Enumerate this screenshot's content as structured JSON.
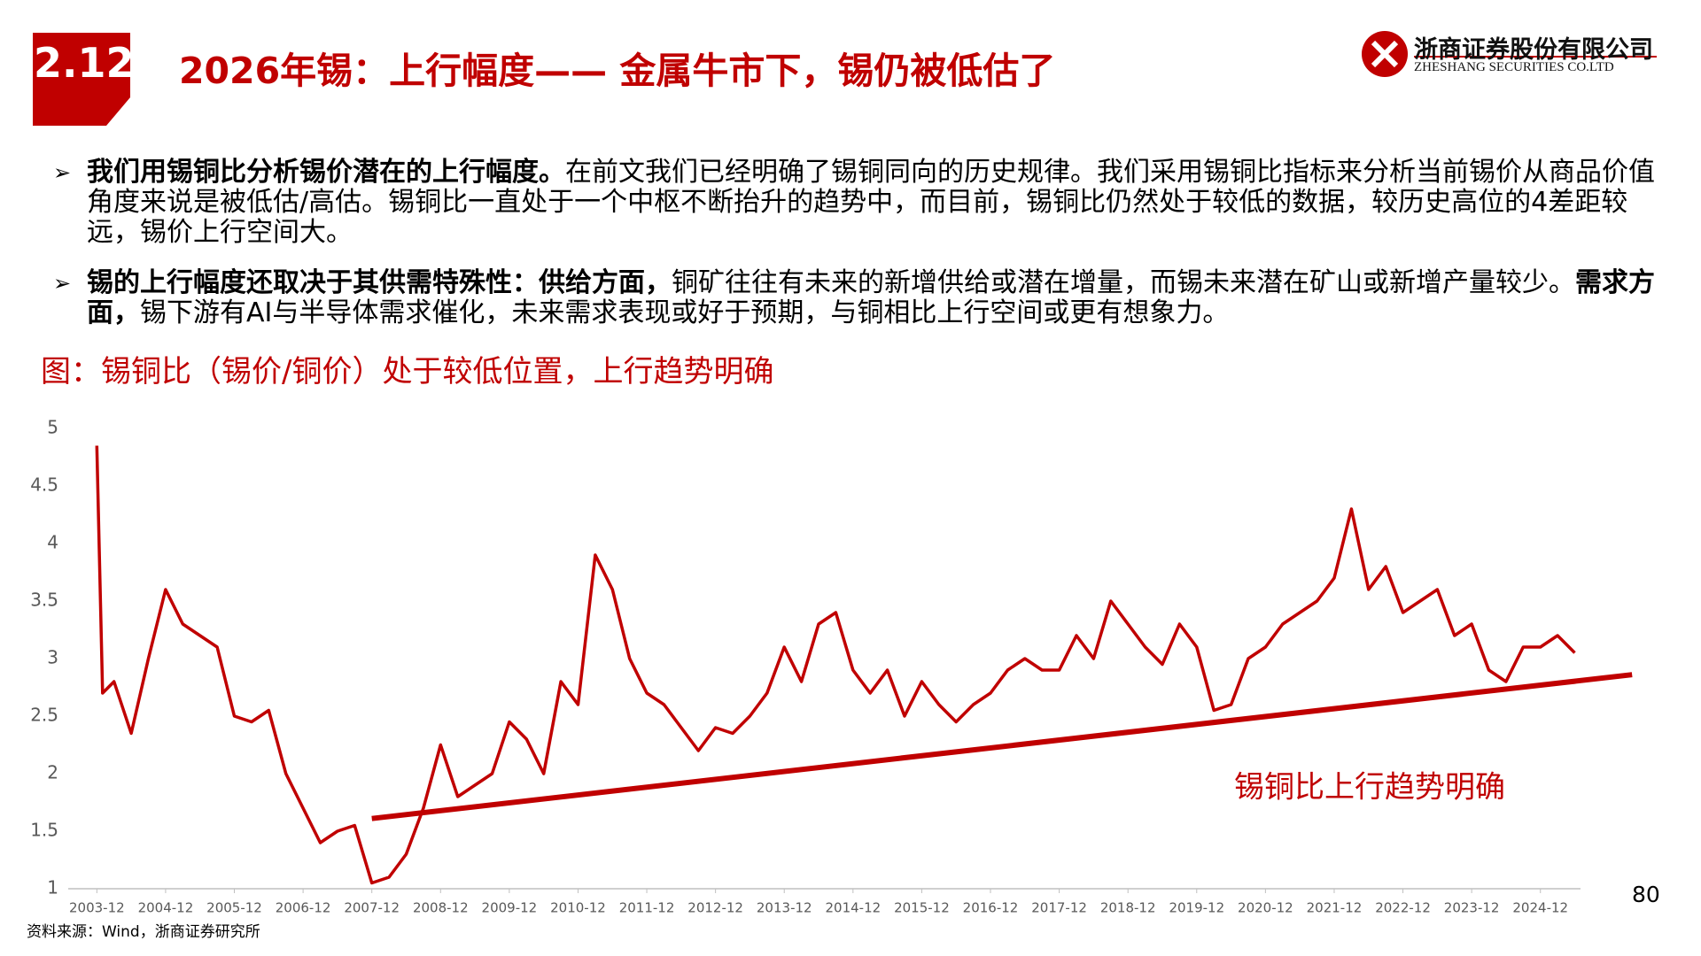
{
  "header": {
    "section": "2.12",
    "title": "2026年锡：上行幅度—— 金属牛市下，锡仍被低估了",
    "company": "浙商证券股份有限公司",
    "company_en": "ZHESHANG SECURITIES CO.LTD"
  },
  "bullets": [
    [
      {
        "text": "我们用锡铜比分析锡价潜在的上行幅度。",
        "bold": true
      },
      {
        "text": "在前文我们已经明确了锡铜同向的历史规律。我们采用锡铜比指标来分析当前锡价从商品价值角度来说是被低估/高估。锡铜比一直处于一个中枢不断抬升的趋势中，而目前，锡铜比仍然处于较低的数据，较历史高位的4差距较远，锡价上行空间大。",
        "bold": false
      }
    ],
    [
      {
        "text": "锡的上行幅度还取决于其供需特殊性：供给方面，",
        "bold": true
      },
      {
        "text": "铜矿往往有未来的新增供给或潜在增量，而锡未来潜在矿山或新增产量较少。",
        "bold": false
      },
      {
        "text": "需求方面，",
        "bold": true
      },
      {
        "text": "锡下游有AI与半导体需求催化，未来需求表现或好于预期，与铜相比上行空间或更有想象力。",
        "bold": false
      }
    ]
  ],
  "chart_data": {
    "type": "line",
    "title": "图：锡铜比（锡价/铜价）处于较低位置，上行趋势明确",
    "x": [
      "2003-12",
      "2004-01",
      "2004-03",
      "2004-06",
      "2004-09",
      "2004-12",
      "2005-03",
      "2005-06",
      "2005-09",
      "2005-12",
      "2006-03",
      "2006-06",
      "2006-09",
      "2006-12",
      "2007-03",
      "2007-06",
      "2007-09",
      "2007-12",
      "2008-03",
      "2008-06",
      "2008-09",
      "2008-12",
      "2009-03",
      "2009-06",
      "2009-09",
      "2009-12",
      "2010-03",
      "2010-06",
      "2010-09",
      "2010-12",
      "2011-03",
      "2011-06",
      "2011-09",
      "2011-12",
      "2012-03",
      "2012-06",
      "2012-09",
      "2012-12",
      "2013-03",
      "2013-06",
      "2013-09",
      "2013-12",
      "2014-03",
      "2014-06",
      "2014-09",
      "2014-12",
      "2015-03",
      "2015-06",
      "2015-09",
      "2015-12",
      "2016-03",
      "2016-06",
      "2016-09",
      "2016-12",
      "2017-03",
      "2017-06",
      "2017-09",
      "2017-12",
      "2018-03",
      "2018-06",
      "2018-09",
      "2018-12",
      "2019-03",
      "2019-06",
      "2019-09",
      "2019-12",
      "2020-03",
      "2020-06",
      "2020-09",
      "2020-12",
      "2021-03",
      "2021-06",
      "2021-09",
      "2021-12",
      "2022-03",
      "2022-06",
      "2022-09",
      "2022-12",
      "2023-03",
      "2023-06",
      "2023-09",
      "2023-12",
      "2024-03",
      "2024-06",
      "2024-09",
      "2024-12",
      "2025-03",
      "2025-06"
    ],
    "values": [
      4.85,
      2.7,
      2.8,
      2.35,
      3.0,
      3.6,
      3.3,
      3.2,
      3.1,
      2.5,
      2.45,
      2.55,
      2.0,
      1.7,
      1.4,
      1.5,
      1.55,
      1.05,
      1.1,
      1.3,
      1.7,
      2.25,
      1.8,
      1.9,
      2.0,
      2.45,
      2.3,
      2.0,
      2.8,
      2.6,
      3.9,
      3.6,
      3.0,
      2.7,
      2.6,
      2.4,
      2.2,
      2.4,
      2.35,
      2.5,
      2.7,
      3.1,
      2.8,
      3.3,
      3.4,
      2.9,
      2.7,
      2.9,
      2.5,
      2.8,
      2.6,
      2.45,
      2.6,
      2.7,
      2.9,
      3.0,
      2.9,
      2.9,
      3.2,
      3.0,
      3.5,
      3.3,
      3.1,
      2.95,
      3.3,
      3.1,
      2.55,
      2.6,
      3.0,
      3.1,
      3.3,
      3.4,
      3.5,
      3.7,
      4.3,
      3.6,
      3.8,
      3.4,
      3.5,
      3.6,
      3.2,
      3.3,
      2.9,
      2.8,
      3.1,
      3.1,
      3.2,
      3.05
    ],
    "color": "#c00000",
    "trendline": {
      "x": [
        "2007-12",
        "2026-04"
      ],
      "values": [
        1.61,
        2.86
      ],
      "color": "#c00000"
    },
    "annotation": "锡铜比上行趋势明确",
    "xlim": [
      "2003-07",
      "2025-07"
    ],
    "xticks": [
      "2003-12",
      "2004-12",
      "2005-12",
      "2006-12",
      "2007-12",
      "2008-12",
      "2009-12",
      "2010-12",
      "2011-12",
      "2012-12",
      "2013-12",
      "2014-12",
      "2015-12",
      "2016-12",
      "2017-12",
      "2018-12",
      "2019-12",
      "2020-12",
      "2021-12",
      "2022-12",
      "2023-12",
      "2024-12"
    ],
    "ylim": [
      1,
      5
    ],
    "yticks": [
      1,
      1.5,
      2,
      2.5,
      3,
      3.5,
      4,
      4.5,
      5
    ],
    "grid": false
  },
  "source": "资料来源：Wind，浙商证券研究所",
  "page_number": "80"
}
